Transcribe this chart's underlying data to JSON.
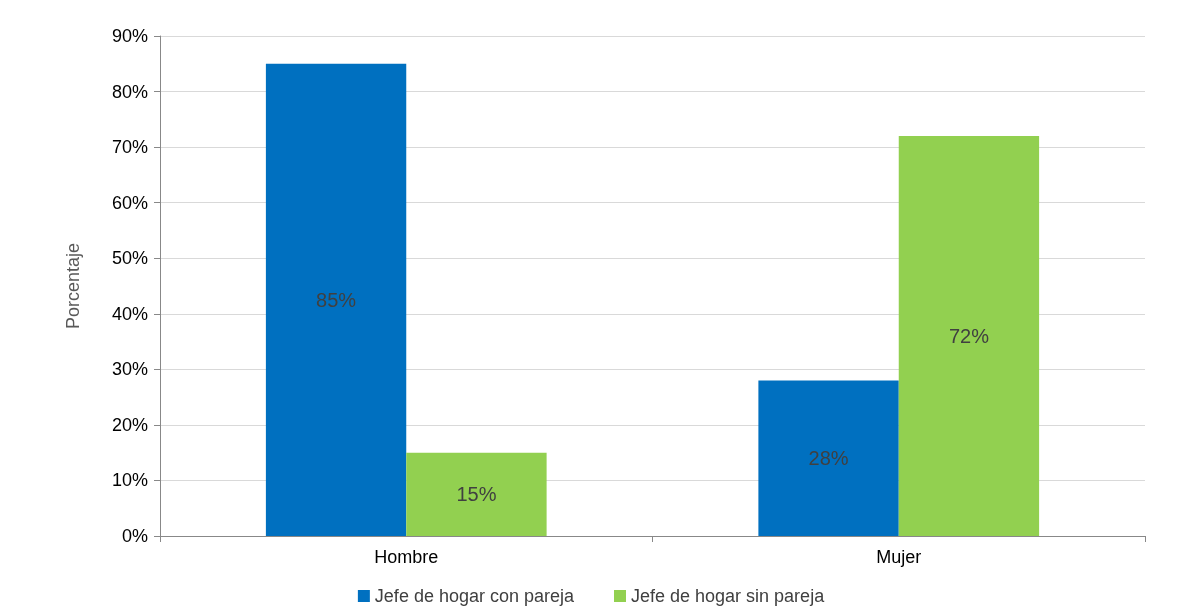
{
  "chart_data": {
    "type": "bar",
    "ylabel": "Porcentaje",
    "categories": [
      "Hombre",
      "Mujer"
    ],
    "series": [
      {
        "name": "Jefe de hogar con pareja",
        "color": "#0070c0",
        "values": [
          85,
          28
        ],
        "value_labels": [
          "85%",
          "28%"
        ]
      },
      {
        "name": "Jefe de hogar sin pareja",
        "color": "#92d050",
        "values": [
          15,
          72
        ],
        "value_labels": [
          "15%",
          "72%"
        ]
      }
    ],
    "ylim": [
      0,
      90
    ],
    "yticks": [
      {
        "value": 0,
        "label": "0%"
      },
      {
        "value": 10,
        "label": "10%"
      },
      {
        "value": 20,
        "label": "20%"
      },
      {
        "value": 30,
        "label": "30%"
      },
      {
        "value": 40,
        "label": "40%"
      },
      {
        "value": 50,
        "label": "50%"
      },
      {
        "value": 60,
        "label": "60%"
      },
      {
        "value": 70,
        "label": "70%"
      },
      {
        "value": 80,
        "label": "80%"
      },
      {
        "value": 90,
        "label": "90%"
      }
    ],
    "grid": "y",
    "legend": "bottom"
  }
}
